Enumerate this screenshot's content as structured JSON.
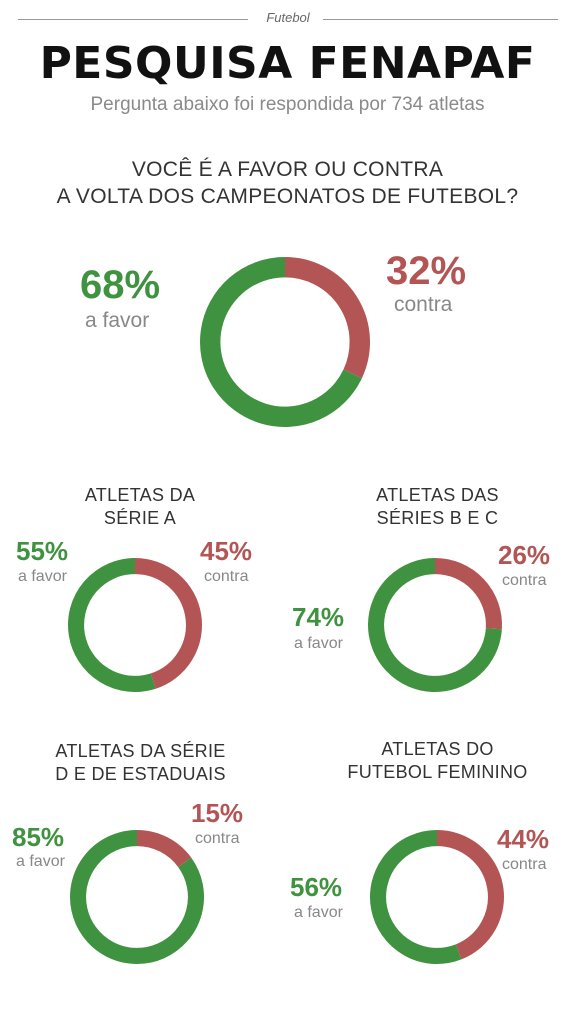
{
  "header": {
    "kicker": "Futebol",
    "title": "PESQUISA FENAPAF",
    "subtitle": "Pergunta abaixo foi respondida por 734 atletas"
  },
  "question": {
    "line1": "VOCÊ É A FAVOR OU CONTRA",
    "line2": "A VOLTA DOS CAMPEONATOS DE FUTEBOL?"
  },
  "colors": {
    "favor": "#3f923f",
    "contra": "#b35555"
  },
  "chart_data": [
    {
      "type": "pie",
      "title_lines": [],
      "favor_label": "68%",
      "favor_text": "a favor",
      "contra_label": "32%",
      "contra_text": "contra",
      "slices": [
        {
          "name": "a favor",
          "value": 68
        },
        {
          "name": "contra",
          "value": 32
        }
      ]
    },
    {
      "type": "pie",
      "title_lines": [
        "ATLETAS DA",
        "SÉRIE A"
      ],
      "favor_label": "55%",
      "favor_text": "a favor",
      "contra_label": "45%",
      "contra_text": "contra",
      "slices": [
        {
          "name": "a favor",
          "value": 55
        },
        {
          "name": "contra",
          "value": 45
        }
      ]
    },
    {
      "type": "pie",
      "title_lines": [
        "ATLETAS DAS",
        "SÉRIES B E C"
      ],
      "favor_label": "74%",
      "favor_text": "a favor",
      "contra_label": "26%",
      "contra_text": "contra",
      "slices": [
        {
          "name": "a favor",
          "value": 74
        },
        {
          "name": "contra",
          "value": 26
        }
      ]
    },
    {
      "type": "pie",
      "title_lines": [
        "ATLETAS DA SÉRIE",
        "D E DE ESTADUAIS"
      ],
      "favor_label": "85%",
      "favor_text": "a favor",
      "contra_label": "15%",
      "contra_text": "contra",
      "slices": [
        {
          "name": "a favor",
          "value": 85
        },
        {
          "name": "contra",
          "value": 15
        }
      ]
    },
    {
      "type": "pie",
      "title_lines": [
        "ATLETAS DO",
        "FUTEBOL FEMININO"
      ],
      "favor_label": "56%",
      "favor_text": "a favor",
      "contra_label": "44%",
      "contra_text": "contra",
      "slices": [
        {
          "name": "a favor",
          "value": 56
        },
        {
          "name": "contra",
          "value": 44
        }
      ]
    }
  ]
}
